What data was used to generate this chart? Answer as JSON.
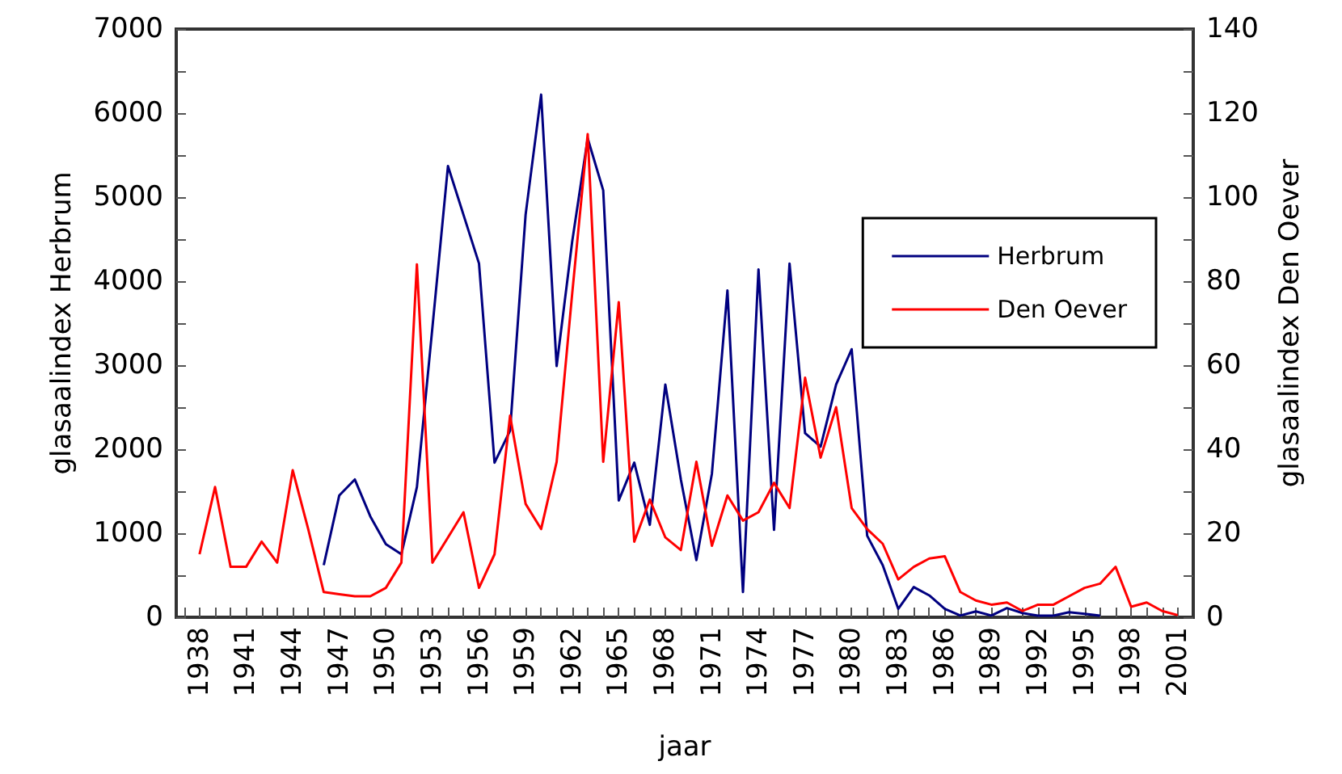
{
  "chart_data": {
    "type": "line",
    "xlabel": "jaar",
    "ylabel": "glasaalindex Herbrum",
    "y2label": "glasaalindex Den Oever",
    "series": [
      {
        "name": "Herbrum",
        "color": "#000080",
        "x": [
          1946,
          1947,
          1948,
          1949,
          1950,
          1951,
          1952,
          1953,
          1954,
          1955,
          1956,
          1957,
          1958,
          1959,
          1960,
          1961,
          1962,
          1963,
          1964,
          1965,
          1966,
          1967,
          1968,
          1969,
          1970,
          1971,
          1972,
          1973,
          1974,
          1975,
          1976,
          1977,
          1978,
          1979,
          1980,
          1981,
          1982,
          1983,
          1984,
          1985,
          1986,
          1987,
          1988,
          1989,
          1990,
          1991,
          1992,
          1993,
          1994,
          1995,
          1996
        ],
        "values": [
          620,
          1450,
          1640,
          1200,
          870,
          750,
          1550,
          3450,
          5370,
          4790,
          4210,
          1840,
          2220,
          4790,
          6220,
          2990,
          4470,
          5700,
          5080,
          1390,
          1840,
          1100,
          2770,
          1640,
          680,
          1710,
          3890,
          300,
          4140,
          1040,
          4210,
          2190,
          2030,
          2770,
          3190,
          970,
          620,
          100,
          360,
          260,
          100,
          20,
          70,
          20,
          110,
          50,
          20,
          20,
          60,
          40,
          20
        ]
      },
      {
        "name": "Den Oever",
        "color": "#ff0000",
        "axis": "y2",
        "x": [
          1938,
          1939,
          1940,
          1941,
          1942,
          1943,
          1944,
          1945,
          1946,
          1947,
          1948,
          1949,
          1950,
          1951,
          1952,
          1953,
          1954,
          1955,
          1956,
          1957,
          1958,
          1959,
          1960,
          1961,
          1962,
          1963,
          1964,
          1965,
          1966,
          1967,
          1968,
          1969,
          1970,
          1971,
          1972,
          1973,
          1974,
          1975,
          1976,
          1977,
          1978,
          1979,
          1980,
          1981,
          1982,
          1983,
          1984,
          1985,
          1986,
          1987,
          1988,
          1989,
          1990,
          1991,
          1992,
          1993,
          1994,
          1995,
          1996,
          1997,
          1998,
          1999,
          2000,
          2001
        ],
        "values": [
          15,
          31,
          12,
          12,
          18,
          13,
          35,
          21,
          6,
          5.5,
          5,
          5,
          7,
          13,
          84,
          13,
          19,
          25,
          7,
          15,
          48,
          27,
          21,
          37,
          77,
          115,
          37,
          75,
          18,
          28,
          19,
          16,
          37,
          17,
          29,
          23,
          25,
          32,
          26,
          57,
          38,
          50,
          26,
          21,
          17.5,
          9,
          12,
          14,
          14.5,
          6,
          4,
          3,
          3.5,
          1.5,
          3,
          3,
          5,
          7,
          8,
          12,
          2.5,
          3.5,
          1.5,
          0.5
        ]
      }
    ],
    "xlim": [
      1936.5,
      2002
    ],
    "xticks": [
      {
        "value": 1937,
        "label": null
      },
      1938,
      {
        "value": 1939,
        "label": null
      },
      {
        "value": 1940,
        "label": null
      },
      1941,
      {
        "value": 1942,
        "label": null
      },
      {
        "value": 1943,
        "label": null
      },
      1944,
      {
        "value": 1945,
        "label": null
      },
      {
        "value": 1946,
        "label": null
      },
      1947,
      {
        "value": 1948,
        "label": null
      },
      {
        "value": 1949,
        "label": null
      },
      1950,
      {
        "value": 1951,
        "label": null
      },
      {
        "value": 1952,
        "label": null
      },
      1953,
      {
        "value": 1954,
        "label": null
      },
      {
        "value": 1955,
        "label": null
      },
      1956,
      {
        "value": 1957,
        "label": null
      },
      {
        "value": 1958,
        "label": null
      },
      1959,
      {
        "value": 1960,
        "label": null
      },
      {
        "value": 1961,
        "label": null
      },
      1962,
      {
        "value": 1963,
        "label": null
      },
      {
        "value": 1964,
        "label": null
      },
      1965,
      {
        "value": 1966,
        "label": null
      },
      {
        "value": 1967,
        "label": null
      },
      1968,
      {
        "value": 1969,
        "label": null
      },
      {
        "value": 1970,
        "label": null
      },
      1971,
      {
        "value": 1972,
        "label": null
      },
      {
        "value": 1973,
        "label": null
      },
      1974,
      {
        "value": 1975,
        "label": null
      },
      {
        "value": 1976,
        "label": null
      },
      1977,
      {
        "value": 1978,
        "label": null
      },
      {
        "value": 1979,
        "label": null
      },
      1980,
      {
        "value": 1981,
        "label": null
      },
      {
        "value": 1982,
        "label": null
      },
      1983,
      {
        "value": 1984,
        "label": null
      },
      {
        "value": 1985,
        "label": null
      },
      1986,
      {
        "value": 1987,
        "label": null
      },
      {
        "value": 1988,
        "label": null
      },
      1989,
      {
        "value": 1990,
        "label": null
      },
      {
        "value": 1991,
        "label": null
      },
      1992,
      {
        "value": 1993,
        "label": null
      },
      {
        "value": 1994,
        "label": null
      },
      1995,
      {
        "value": 1996,
        "label": null
      },
      {
        "value": 1997,
        "label": null
      },
      1998,
      {
        "value": 1999,
        "label": null
      },
      {
        "value": 2000,
        "label": null
      },
      2001
    ],
    "ylim": [
      0,
      7000
    ],
    "yticks": [
      0,
      {
        "value": 500,
        "label": null
      },
      1000,
      {
        "value": 1500,
        "label": null
      },
      2000,
      {
        "value": 2500,
        "label": null
      },
      3000,
      {
        "value": 3500,
        "label": null
      },
      4000,
      {
        "value": 4500,
        "label": null
      },
      5000,
      {
        "value": 5500,
        "label": null
      },
      6000,
      {
        "value": 6500,
        "label": null
      },
      7000
    ],
    "y2lim": [
      0,
      140
    ],
    "y2ticks": [
      0,
      {
        "value": 10,
        "label": null
      },
      20,
      {
        "value": 30,
        "label": null
      },
      40,
      {
        "value": 50,
        "label": null
      },
      60,
      {
        "value": 70,
        "label": null
      },
      80,
      {
        "value": 90,
        "label": null
      },
      100,
      {
        "value": 110,
        "label": null
      },
      120,
      {
        "value": 130,
        "label": null
      },
      140
    ],
    "legend": "right",
    "grid": false,
    "marker": "none",
    "line_style": "solid"
  }
}
